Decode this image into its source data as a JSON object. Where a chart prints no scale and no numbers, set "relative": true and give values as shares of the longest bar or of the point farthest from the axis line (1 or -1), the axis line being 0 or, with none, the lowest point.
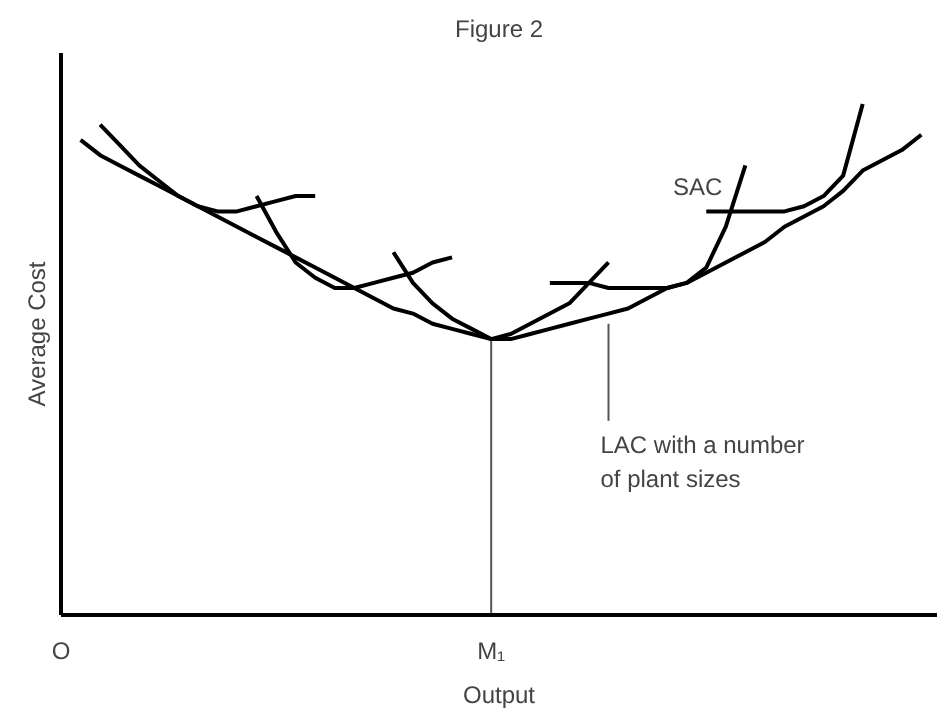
{
  "chart_data": {
    "type": "line",
    "title": "Figure 2",
    "xlabel": "Output",
    "ylabel": "Average Cost",
    "relative": true,
    "tick_labels": "x",
    "grid": false,
    "marker": "none",
    "line_style": "solid",
    "categories": [
      "O",
      null,
      null,
      null,
      null,
      null,
      null,
      null,
      null,
      null,
      null,
      null,
      null,
      null,
      null,
      null,
      null,
      null,
      null,
      null,
      null,
      null,
      "M₁",
      null,
      null,
      null,
      null,
      null,
      null,
      null,
      null,
      null,
      null,
      null,
      null,
      null,
      null,
      null,
      null,
      null,
      null,
      null,
      null,
      null,
      null
    ],
    "series": [
      {
        "color": "#000000",
        "values": [
          null,
          0.93,
          0.9,
          0.88,
          0.86,
          0.84,
          0.82,
          0.8,
          0.78,
          0.76,
          0.74,
          0.72,
          0.7,
          0.68,
          0.66,
          0.64,
          0.62,
          0.6,
          0.59,
          0.57,
          0.56,
          0.55,
          0.54,
          0.54,
          0.55,
          0.56,
          0.57,
          0.58,
          0.59,
          0.6,
          0.62,
          0.64,
          0.65,
          0.67,
          0.69,
          0.71,
          0.73,
          0.76,
          0.78,
          0.8,
          0.83,
          0.87,
          0.89,
          0.91,
          0.94
        ]
      },
      {
        "color": "#000000",
        "values": [
          null,
          null,
          0.96,
          0.92,
          0.88,
          0.85,
          0.82,
          0.8,
          0.79,
          0.79,
          0.8,
          0.81,
          0.82,
          0.82,
          null,
          null,
          null,
          null,
          null,
          null,
          null,
          null,
          null,
          null,
          null,
          null,
          null,
          null,
          null,
          null,
          null,
          null,
          null,
          null,
          null,
          null,
          null,
          null,
          null,
          null,
          null,
          null,
          null,
          null,
          null
        ]
      },
      {
        "color": "#000000",
        "values": [
          null,
          null,
          null,
          null,
          null,
          null,
          null,
          null,
          null,
          null,
          0.82,
          0.75,
          0.69,
          0.66,
          0.64,
          0.64,
          0.65,
          0.66,
          0.67,
          0.69,
          0.7,
          null,
          null,
          null,
          null,
          null,
          null,
          null,
          null,
          null,
          null,
          null,
          null,
          null,
          null,
          null,
          null,
          null,
          null,
          null,
          null,
          null,
          null,
          null,
          null
        ]
      },
      {
        "color": "#000000",
        "values": [
          null,
          null,
          null,
          null,
          null,
          null,
          null,
          null,
          null,
          null,
          null,
          null,
          null,
          null,
          null,
          null,
          null,
          0.71,
          0.65,
          0.61,
          0.58,
          0.56,
          0.54,
          0.55,
          0.57,
          0.59,
          0.61,
          0.65,
          0.69,
          null,
          null,
          null,
          null,
          null,
          null,
          null,
          null,
          null,
          null,
          null,
          null,
          null,
          null,
          null,
          null
        ]
      },
      {
        "color": "#000000",
        "values": [
          null,
          null,
          null,
          null,
          null,
          null,
          null,
          null,
          null,
          null,
          null,
          null,
          null,
          null,
          null,
          null,
          null,
          null,
          null,
          null,
          null,
          null,
          null,
          null,
          null,
          0.65,
          0.65,
          0.65,
          0.64,
          0.64,
          0.64,
          0.64,
          0.65,
          0.68,
          0.76,
          0.88,
          null,
          null,
          null,
          null,
          null,
          null,
          null,
          null,
          null
        ]
      },
      {
        "color": "#000000",
        "values": [
          null,
          null,
          null,
          null,
          null,
          null,
          null,
          null,
          null,
          null,
          null,
          null,
          null,
          null,
          null,
          null,
          null,
          null,
          null,
          null,
          null,
          null,
          null,
          null,
          null,
          null,
          null,
          null,
          null,
          null,
          null,
          null,
          null,
          0.79,
          0.79,
          0.79,
          0.79,
          0.79,
          0.8,
          0.82,
          0.86,
          1.0,
          null,
          null,
          null
        ]
      }
    ],
    "ref_lines": [
      {
        "axis": "x",
        "value": "M₁",
        "color": "#555555"
      }
    ],
    "annotations": [
      "SAC",
      "LAC with a number of plant sizes"
    ]
  }
}
